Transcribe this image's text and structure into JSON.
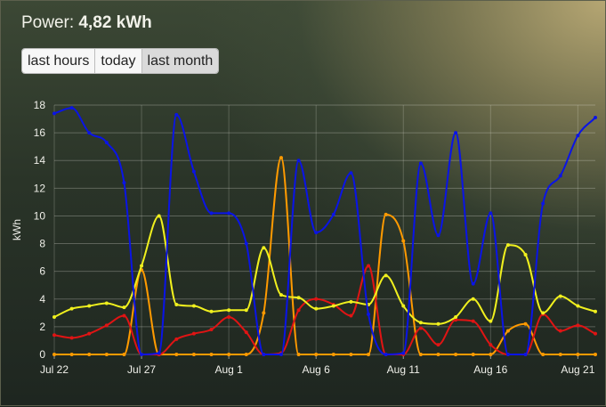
{
  "header": {
    "label": "Power:",
    "value": "4,82 kWh"
  },
  "buttons": [
    {
      "label": "last hours",
      "active": false
    },
    {
      "label": "today",
      "active": false
    },
    {
      "label": "last month",
      "active": true
    }
  ],
  "chart_data": {
    "type": "line",
    "ylabel": "kWh",
    "ylim": [
      0,
      18
    ],
    "yticks": [
      0,
      2,
      4,
      6,
      8,
      10,
      12,
      14,
      16,
      18
    ],
    "x": [
      "Jul 22",
      "Jul 23",
      "Jul 24",
      "Jul 25",
      "Jul 26",
      "Jul 27",
      "Jul 28",
      "Jul 29",
      "Jul 30",
      "Jul 31",
      "Aug 1",
      "Aug 2",
      "Aug 3",
      "Aug 4",
      "Aug 5",
      "Aug 6",
      "Aug 7",
      "Aug 8",
      "Aug 9",
      "Aug 10",
      "Aug 11",
      "Aug 12",
      "Aug 13",
      "Aug 14",
      "Aug 15",
      "Aug 16",
      "Aug 17",
      "Aug 18",
      "Aug 19",
      "Aug 20",
      "Aug 21",
      "Aug 22"
    ],
    "xtick_labels": [
      "Jul 22",
      "Jul 27",
      "Aug 1",
      "Aug 6",
      "Aug 11",
      "Aug 16",
      "Aug 21"
    ],
    "grid": true,
    "series": [
      {
        "color": "#0a14e6",
        "values": [
          17.4,
          17.8,
          16.0,
          15.3,
          12.4,
          0.0,
          0.1,
          17.3,
          13.2,
          10.2,
          10.2,
          8.0,
          0.0,
          0.0,
          14.0,
          8.8,
          10.1,
          13.1,
          2.9,
          0.0,
          0.1,
          13.8,
          8.6,
          16.0,
          5.1,
          10.2,
          0.0,
          0.0,
          10.9,
          12.9,
          15.8,
          17.1
        ]
      },
      {
        "color": "#f0f01e",
        "values": [
          2.7,
          3.3,
          3.5,
          3.7,
          3.4,
          6.4,
          10.0,
          3.6,
          3.5,
          3.1,
          3.2,
          3.2,
          7.7,
          4.3,
          4.1,
          3.3,
          3.5,
          3.8,
          3.6,
          5.7,
          3.5,
          2.3,
          2.2,
          2.7,
          4.0,
          2.4,
          7.9,
          7.2,
          3.0,
          4.2,
          3.5,
          3.1
        ]
      },
      {
        "color": "#ff9a00",
        "values": [
          0,
          0,
          0,
          0,
          0,
          6.1,
          0,
          0,
          0,
          0,
          0,
          0,
          3.0,
          14.2,
          0,
          0,
          0,
          0,
          0,
          10.1,
          8.2,
          0,
          0,
          0,
          0,
          0,
          1.7,
          2.2,
          0,
          0,
          0,
          0
        ]
      },
      {
        "color": "#e01414",
        "values": [
          1.4,
          1.2,
          1.5,
          2.1,
          2.8,
          0.0,
          0.0,
          1.1,
          1.5,
          1.8,
          2.7,
          1.6,
          0.0,
          0.1,
          3.2,
          4.0,
          3.6,
          2.8,
          6.4,
          0.0,
          0.0,
          1.9,
          0.7,
          2.5,
          2.4,
          0.7,
          0.0,
          0.0,
          2.9,
          1.7,
          2.1,
          1.5
        ]
      }
    ]
  }
}
